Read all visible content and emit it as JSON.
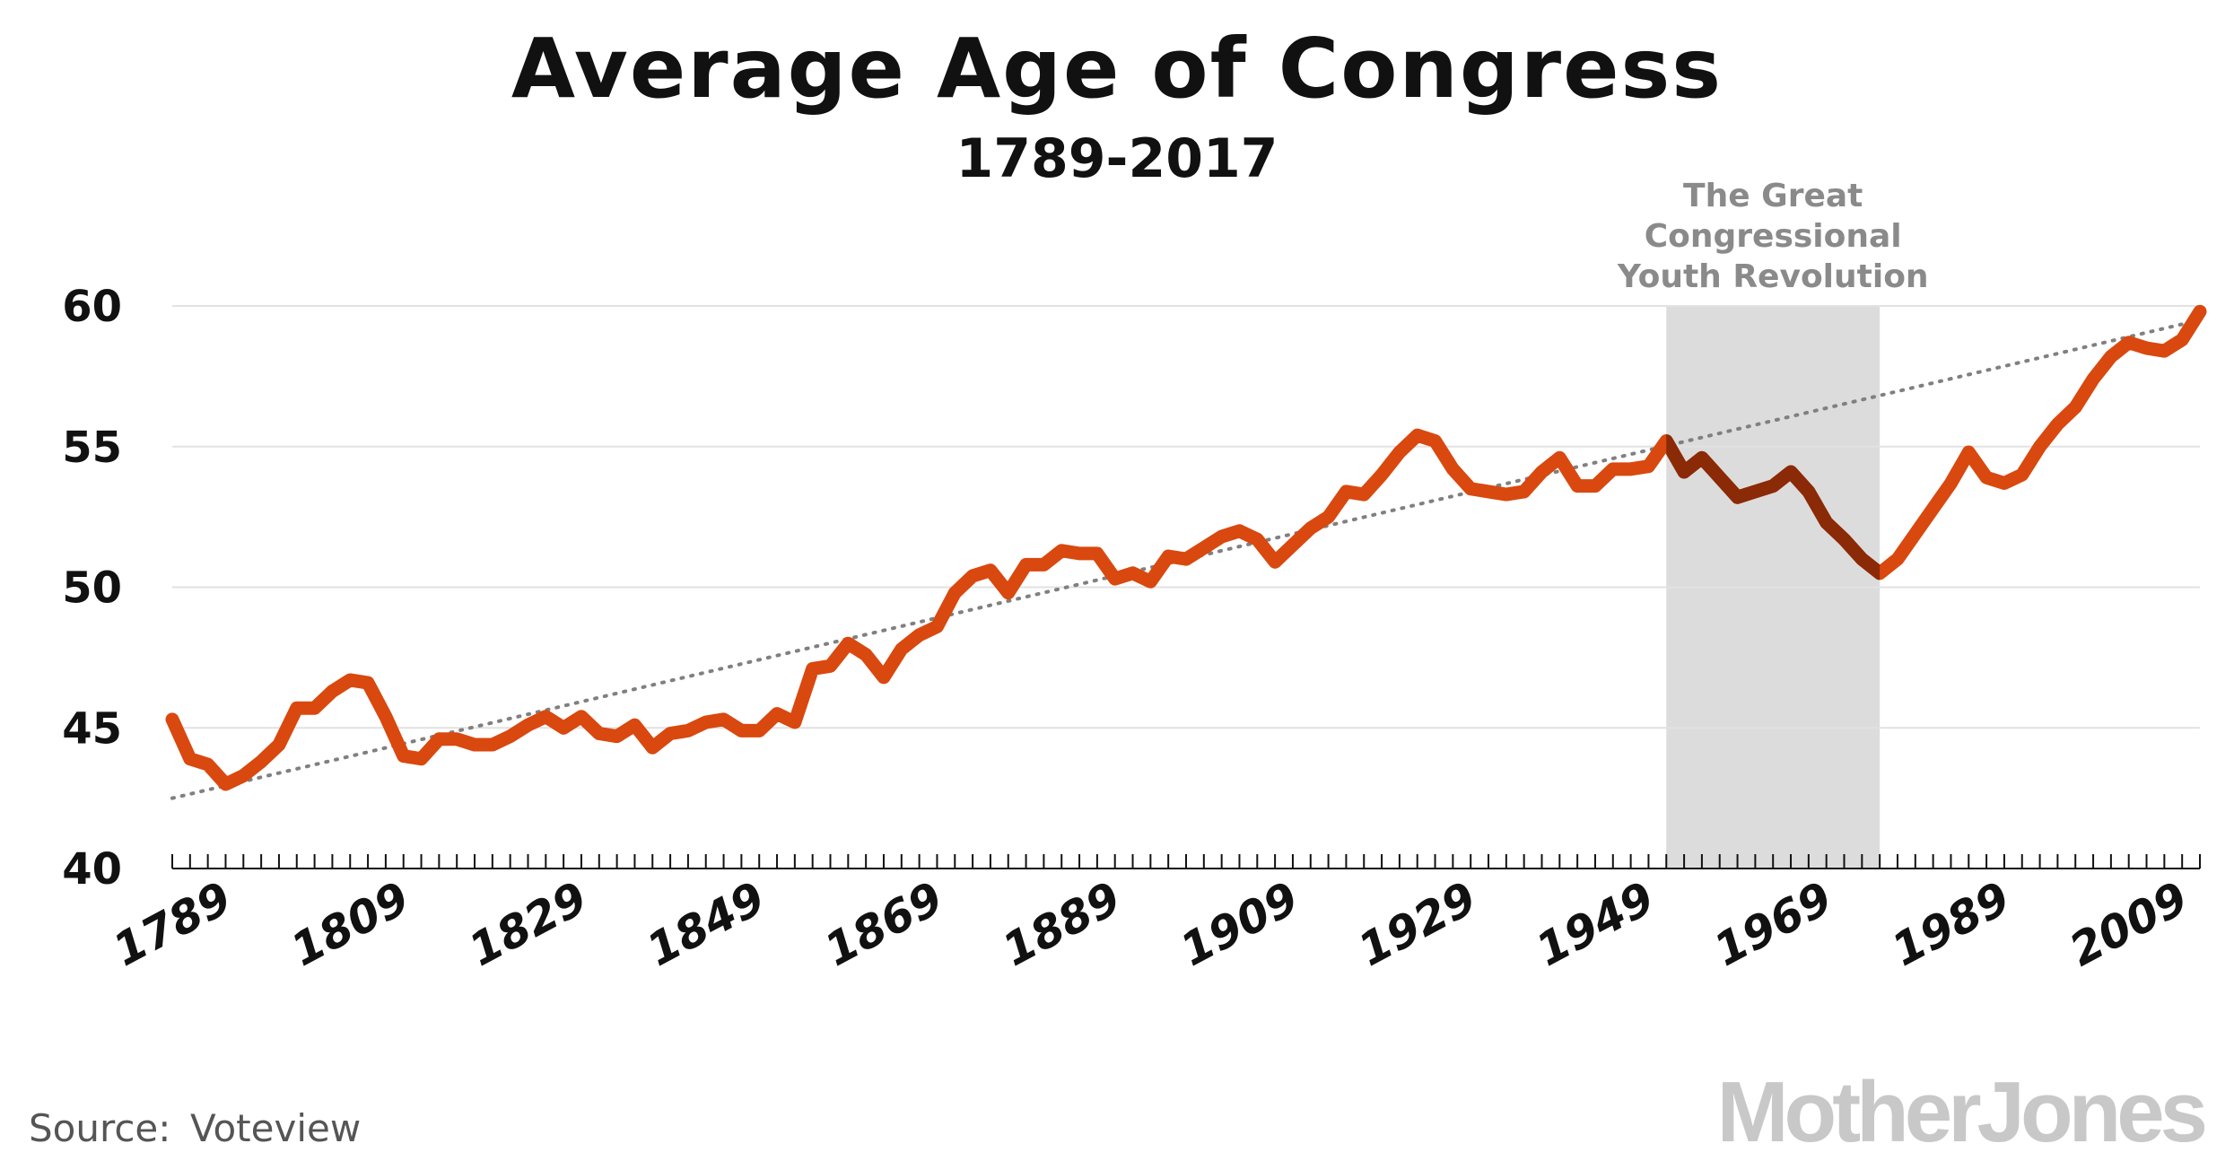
{
  "chart_data": {
    "type": "line",
    "title": "Average Age of Congress",
    "subtitle": "1789-2017",
    "xlabel": "",
    "ylabel": "",
    "xlim": [
      1789,
      2017
    ],
    "ylim": [
      40,
      60
    ],
    "yticks": [
      40,
      45,
      50,
      55,
      60
    ],
    "xtick_labels": [
      "1789",
      "1809",
      "1829",
      "1849",
      "1869",
      "1889",
      "1909",
      "1929",
      "1949",
      "1969",
      "1989",
      "2009"
    ],
    "grid": true,
    "legend": "none",
    "series": [
      {
        "color": "#d9480f",
        "highlight_color": "#8a2a06",
        "x": [
          1789,
          1791,
          1793,
          1795,
          1797,
          1799,
          1801,
          1803,
          1805,
          1807,
          1809,
          1811,
          1813,
          1815,
          1817,
          1819,
          1821,
          1823,
          1825,
          1827,
          1829,
          1831,
          1833,
          1835,
          1837,
          1839,
          1841,
          1843,
          1845,
          1847,
          1849,
          1851,
          1853,
          1855,
          1857,
          1859,
          1861,
          1863,
          1865,
          1867,
          1869,
          1871,
          1873,
          1875,
          1877,
          1879,
          1881,
          1883,
          1885,
          1887,
          1889,
          1891,
          1893,
          1895,
          1897,
          1899,
          1901,
          1903,
          1905,
          1907,
          1909,
          1911,
          1913,
          1915,
          1917,
          1919,
          1921,
          1923,
          1925,
          1927,
          1929,
          1931,
          1933,
          1935,
          1937,
          1939,
          1941,
          1943,
          1945,
          1947,
          1949,
          1951,
          1953,
          1955,
          1957,
          1959,
          1961,
          1963,
          1965,
          1967,
          1969,
          1971,
          1973,
          1975,
          1977,
          1979,
          1981,
          1983,
          1985,
          1987,
          1989,
          1991,
          1993,
          1995,
          1997,
          1999,
          2001,
          2003,
          2005,
          2007,
          2009,
          2011,
          2013,
          2015,
          2017
        ],
        "y": [
          45.3,
          43.9,
          43.7,
          43.0,
          43.3,
          43.8,
          44.4,
          45.7,
          45.7,
          46.3,
          46.7,
          46.6,
          45.4,
          44.0,
          43.9,
          44.6,
          44.6,
          44.4,
          44.4,
          44.7,
          45.1,
          45.4,
          45.0,
          45.4,
          44.8,
          44.7,
          45.1,
          44.3,
          44.8,
          44.9,
          45.2,
          45.3,
          44.9,
          44.9,
          45.5,
          45.2,
          47.1,
          47.2,
          48.0,
          47.6,
          46.8,
          47.8,
          48.3,
          48.6,
          49.8,
          50.4,
          50.6,
          49.8,
          50.8,
          50.8,
          51.3,
          51.2,
          51.2,
          50.3,
          50.5,
          50.2,
          51.1,
          51.0,
          51.4,
          51.8,
          52.0,
          51.7,
          50.9,
          51.5,
          52.1,
          52.5,
          53.4,
          53.3,
          54.0,
          54.8,
          55.4,
          55.2,
          54.2,
          53.5,
          53.4,
          53.3,
          53.4,
          54.1,
          54.6,
          53.6,
          53.6,
          54.2,
          54.2,
          54.3,
          55.2,
          54.1,
          54.6,
          53.9,
          53.2,
          53.4,
          53.6,
          54.1,
          53.4,
          52.3,
          51.7,
          51.0,
          50.5,
          51.0,
          51.9,
          52.8,
          53.7,
          54.8,
          53.9,
          53.7,
          54.0,
          55.0,
          55.8,
          56.4,
          57.4,
          58.2,
          58.7,
          58.5,
          58.4,
          58.8,
          59.8
        ]
      }
    ],
    "trendline": {
      "style": "dotted",
      "color": "#808080",
      "x": [
        1789,
        2017
      ],
      "y": [
        42.5,
        59.5
      ]
    },
    "highlight_band": {
      "x_start": 1957,
      "x_end": 1981,
      "color": "#dcdcdc"
    },
    "annotations": [
      {
        "lines": [
          "The Great",
          "Congressional",
          "Youth Revolution"
        ],
        "x": 1969,
        "y": 60
      }
    ]
  },
  "source": {
    "label": "Source:",
    "value": "Voteview"
  },
  "logo_text": "MotherJones"
}
